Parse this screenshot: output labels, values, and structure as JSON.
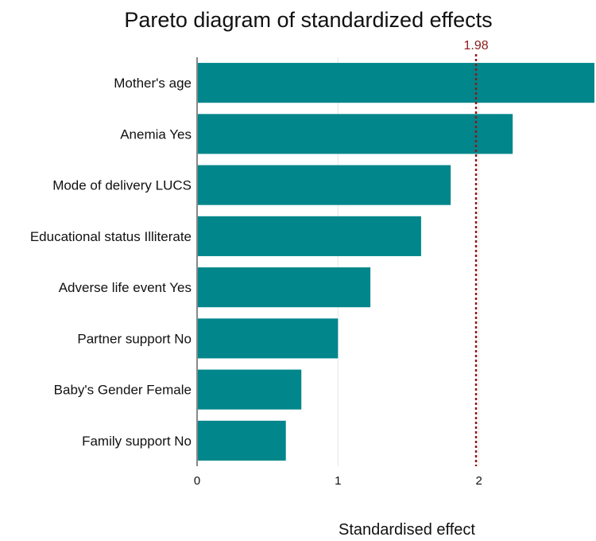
{
  "chart_data": {
    "type": "bar",
    "orientation": "horizontal",
    "title": "Pareto diagram of standardized effects",
    "xlabel": "Standardised effect",
    "ylabel": "",
    "categories": [
      "Mother's age",
      "Anemia Yes",
      "Mode of delivery LUCS",
      "Educational status Illiterate",
      "Adverse life event Yes",
      "Partner support No",
      "Baby's Gender Female",
      "Family support No"
    ],
    "values": [
      2.82,
      2.24,
      1.8,
      1.59,
      1.23,
      1.0,
      0.74,
      0.63
    ],
    "xlim": [
      0,
      2.82
    ],
    "xticks": [
      0,
      1,
      2
    ],
    "grid": "vertical",
    "reference_line": {
      "value": 1.98,
      "label": "1.98",
      "style": "dotted",
      "color": "#8b1a1a"
    },
    "colors": {
      "bar": "#00868b",
      "grid": "#e6e6e6",
      "axis": "#888888"
    }
  }
}
